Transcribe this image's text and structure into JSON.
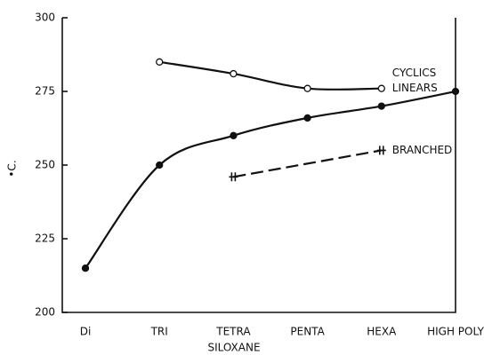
{
  "chart_data": {
    "type": "line",
    "categories": [
      "Di",
      "TRI",
      "TETRA",
      "PENTA",
      "HEXA",
      "HIGH POLY"
    ],
    "x_label": "SILOXANE",
    "y_label": "•C.",
    "ylim": [
      200,
      300
    ],
    "yticks": [
      200,
      225,
      250,
      275,
      300
    ],
    "series": [
      {
        "name": "CYCLICS",
        "color": "#111111",
        "marker": "open-circle",
        "dash": false,
        "values": [
          null,
          285,
          281,
          276,
          276,
          null
        ]
      },
      {
        "name": "LINEARS",
        "color": "#111111",
        "marker": "filled-circle",
        "dash": false,
        "values": [
          215,
          250,
          260,
          266,
          270,
          275
        ]
      },
      {
        "name": "BRANCHED",
        "color": "#111111",
        "marker": "plus",
        "dash": true,
        "values": [
          null,
          null,
          246,
          null,
          255,
          null
        ]
      }
    ]
  }
}
